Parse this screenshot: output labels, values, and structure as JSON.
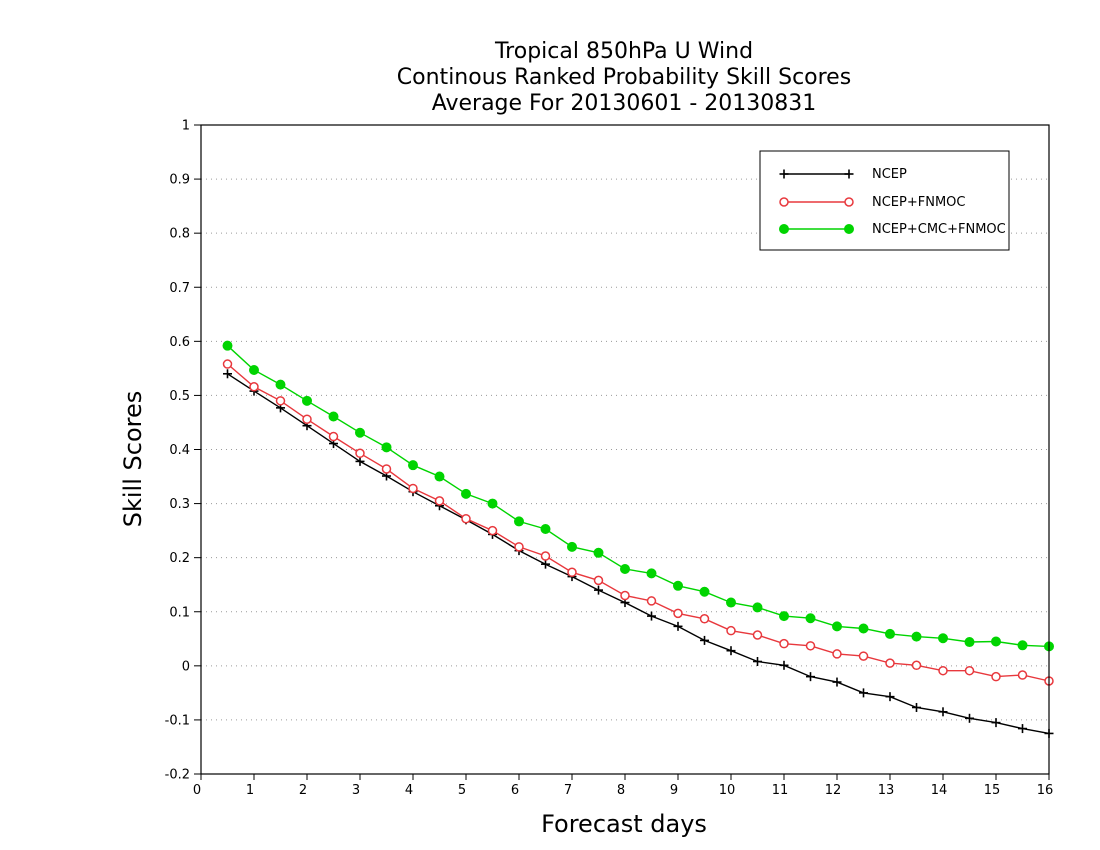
{
  "chart_data": {
    "type": "line",
    "title": [
      "Tropical 850hPa U Wind",
      "Continous Ranked Probability Skill Scores",
      "Average For 20130601 - 20130831"
    ],
    "xlabel": "Forecast days",
    "ylabel": "Skill Scores",
    "xlim": [
      0,
      16
    ],
    "ylim": [
      -0.2,
      1
    ],
    "xticks": [
      "0",
      "1",
      "2",
      "3",
      "4",
      "5",
      "6",
      "7",
      "8",
      "9",
      "10",
      "11",
      "12",
      "13",
      "14",
      "15",
      "16"
    ],
    "yticks": [
      "-0.2",
      "-0.1",
      "0",
      "0.1",
      "0.2",
      "0.3",
      "0.4",
      "0.5",
      "0.6",
      "0.7",
      "0.8",
      "0.9",
      "1"
    ],
    "grid": "horizontal-dotted",
    "legend_position": "top-right",
    "x": [
      0.5,
      1,
      1.5,
      2,
      2.5,
      3,
      3.5,
      4,
      4.5,
      5,
      5.5,
      6,
      6.5,
      7,
      7.5,
      8,
      8.5,
      9,
      9.5,
      10,
      10.5,
      11,
      11.5,
      12,
      12.5,
      13,
      13.5,
      14,
      14.5,
      15,
      15.5,
      16
    ],
    "series": [
      {
        "name": "NCEP",
        "color": "#000000",
        "marker": "plus",
        "values": [
          0.54,
          0.508,
          0.477,
          0.444,
          0.411,
          0.378,
          0.351,
          0.322,
          0.296,
          0.27,
          0.243,
          0.213,
          0.188,
          0.165,
          0.14,
          0.117,
          0.092,
          0.073,
          0.047,
          0.028,
          0.008,
          0.001,
          -0.02,
          -0.03,
          -0.05,
          -0.057,
          -0.077,
          -0.085,
          -0.097,
          -0.105,
          -0.116,
          -0.125
        ]
      },
      {
        "name": "NCEP+FNMOC",
        "color": "#e8383d",
        "marker": "open-circle",
        "values": [
          0.558,
          0.516,
          0.49,
          0.456,
          0.424,
          0.393,
          0.364,
          0.328,
          0.305,
          0.272,
          0.25,
          0.22,
          0.203,
          0.173,
          0.158,
          0.13,
          0.12,
          0.097,
          0.087,
          0.065,
          0.057,
          0.041,
          0.037,
          0.022,
          0.018,
          0.005,
          0.001,
          -0.009,
          -0.009,
          -0.02,
          -0.017,
          -0.028
        ]
      },
      {
        "name": "NCEP+CMC+FNMOC",
        "color": "#00d400",
        "marker": "filled-circle",
        "values": [
          0.592,
          0.547,
          0.52,
          0.49,
          0.461,
          0.431,
          0.404,
          0.371,
          0.35,
          0.318,
          0.3,
          0.267,
          0.253,
          0.22,
          0.209,
          0.179,
          0.171,
          0.148,
          0.137,
          0.117,
          0.108,
          0.092,
          0.088,
          0.073,
          0.069,
          0.059,
          0.054,
          0.051,
          0.044,
          0.045,
          0.038,
          0.036
        ]
      }
    ]
  }
}
